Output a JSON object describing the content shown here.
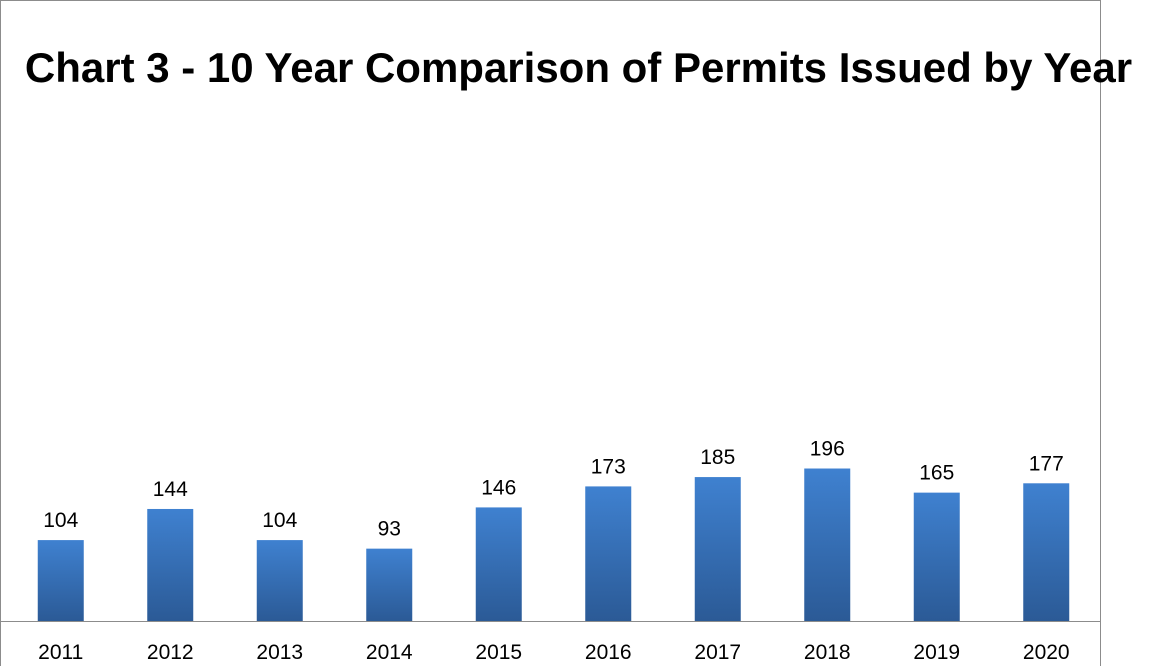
{
  "chart_data": {
    "type": "bar",
    "title": "Chart 3 - 10 Year Comparison of Permits Issued by Year",
    "categories": [
      "2011",
      "2012",
      "2013",
      "2014",
      "2015",
      "2016",
      "2017",
      "2018",
      "2019",
      "2020"
    ],
    "values": [
      104,
      144,
      104,
      93,
      146,
      173,
      185,
      196,
      165,
      177
    ],
    "data_labels": [
      "104",
      "144",
      "104",
      "93",
      "146",
      "173",
      "185",
      "196",
      "165",
      "177"
    ],
    "xlabel": "",
    "ylabel": "",
    "ylim": [
      0,
      200
    ],
    "grid": false,
    "legend": "none",
    "colors": {
      "bar_top": "#3f81d0",
      "bar_bottom": "#2b5a96",
      "axis": "#8c8c8c"
    }
  }
}
